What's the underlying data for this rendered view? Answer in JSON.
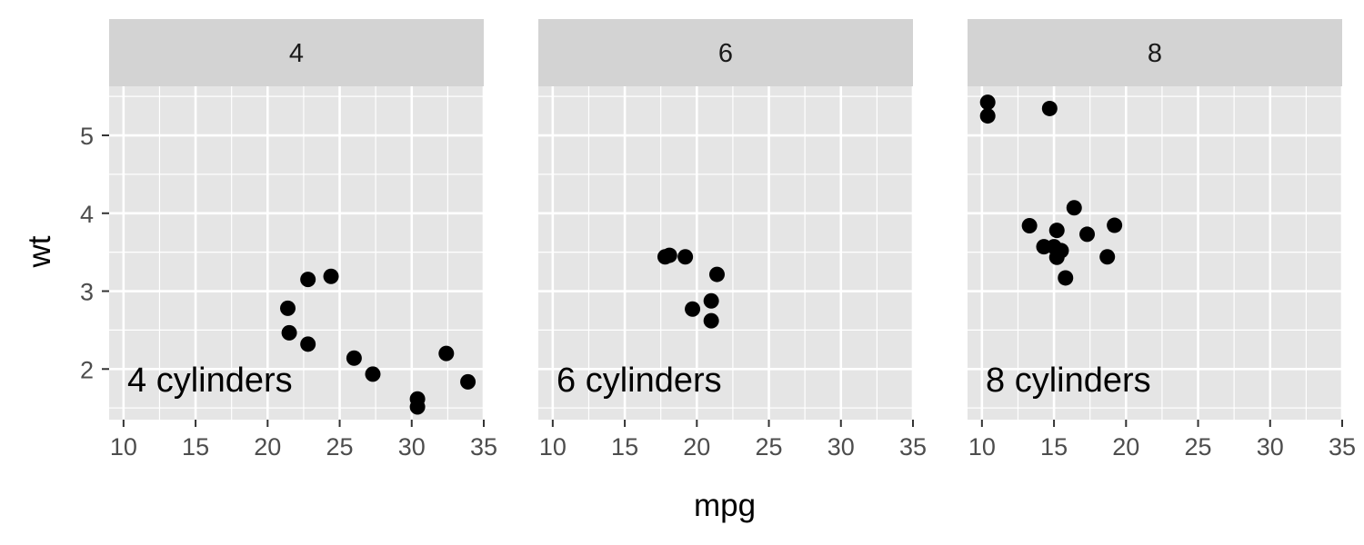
{
  "colors": {
    "panel_background": "#e5e5e5",
    "strip_background": "#d3d3d3",
    "grid_line": "#ffffff",
    "point": "#000000",
    "tick": "#333333"
  },
  "chart_data": {
    "type": "scatter",
    "facet_by": "cyl",
    "xlabel": "mpg",
    "ylabel": "wt",
    "xlim": [
      9.0,
      35.0
    ],
    "ylim": [
      1.35,
      5.63
    ],
    "x_ticks": [
      10,
      15,
      20,
      25,
      30,
      35
    ],
    "y_ticks": [
      2,
      3,
      4,
      5
    ],
    "grid": true,
    "panels": [
      {
        "strip": "4",
        "annotation": "4 cylinders",
        "points": [
          {
            "x": 22.8,
            "y": 2.32
          },
          {
            "x": 24.4,
            "y": 3.19
          },
          {
            "x": 22.8,
            "y": 3.15
          },
          {
            "x": 32.4,
            "y": 2.2
          },
          {
            "x": 30.4,
            "y": 1.615
          },
          {
            "x": 33.9,
            "y": 1.835
          },
          {
            "x": 21.5,
            "y": 2.465
          },
          {
            "x": 27.3,
            "y": 1.935
          },
          {
            "x": 26.0,
            "y": 2.14
          },
          {
            "x": 30.4,
            "y": 1.513
          },
          {
            "x": 21.4,
            "y": 2.78
          }
        ]
      },
      {
        "strip": "6",
        "annotation": "6 cylinders",
        "points": [
          {
            "x": 21.0,
            "y": 2.62
          },
          {
            "x": 21.0,
            "y": 2.875
          },
          {
            "x": 21.4,
            "y": 3.215
          },
          {
            "x": 18.1,
            "y": 3.46
          },
          {
            "x": 19.2,
            "y": 3.44
          },
          {
            "x": 17.8,
            "y": 3.44
          },
          {
            "x": 19.7,
            "y": 2.77
          }
        ]
      },
      {
        "strip": "8",
        "annotation": "8 cylinders",
        "points": [
          {
            "x": 18.7,
            "y": 3.44
          },
          {
            "x": 14.3,
            "y": 3.57
          },
          {
            "x": 16.4,
            "y": 4.07
          },
          {
            "x": 17.3,
            "y": 3.73
          },
          {
            "x": 15.2,
            "y": 3.78
          },
          {
            "x": 10.4,
            "y": 5.25
          },
          {
            "x": 10.4,
            "y": 5.424
          },
          {
            "x": 14.7,
            "y": 5.345
          },
          {
            "x": 15.5,
            "y": 3.52
          },
          {
            "x": 15.2,
            "y": 3.435
          },
          {
            "x": 13.3,
            "y": 3.84
          },
          {
            "x": 19.2,
            "y": 3.845
          },
          {
            "x": 15.8,
            "y": 3.17
          },
          {
            "x": 15.0,
            "y": 3.57
          }
        ]
      }
    ]
  }
}
